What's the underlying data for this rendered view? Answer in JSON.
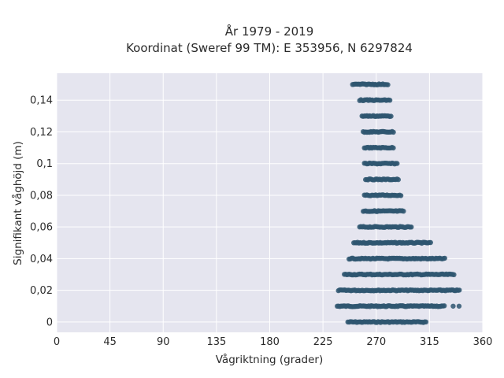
{
  "chart_data": {
    "type": "scatter",
    "title": "År 1979 - 2019",
    "subtitle": "Koordinat (Sweref 99 TM): E 353956, N 6297824",
    "xlabel": "Vågriktning (grader)",
    "ylabel": "Signifikant våghöjd (m)",
    "xlim": [
      0,
      360
    ],
    "ylim": [
      -0.0065,
      0.157
    ],
    "x_ticks": [
      0,
      45,
      90,
      135,
      180,
      225,
      270,
      315,
      360
    ],
    "x_tick_labels": [
      "0",
      "45",
      "90",
      "135",
      "180",
      "225",
      "270",
      "315",
      "360"
    ],
    "y_ticks": [
      0,
      0.02,
      0.04,
      0.06,
      0.08,
      0.1,
      0.12,
      0.14
    ],
    "y_tick_labels": [
      "0",
      "0,02",
      "0,04",
      "0,06",
      "0,08",
      "0,1",
      "0,12",
      "0,14"
    ],
    "grid": true,
    "marker_color": "#2f5670",
    "background_color": "#e5e5ef",
    "bands": [
      {
        "y": 0.0,
        "x_min": 246,
        "x_max": 313,
        "outliers": []
      },
      {
        "y": 0.01,
        "x_min": 237,
        "x_max": 328,
        "outliers": [
          335,
          340
        ]
      },
      {
        "y": 0.02,
        "x_min": 238,
        "x_max": 341,
        "outliers": []
      },
      {
        "y": 0.03,
        "x_min": 243,
        "x_max": 336,
        "outliers": []
      },
      {
        "y": 0.04,
        "x_min": 247,
        "x_max": 328,
        "outliers": []
      },
      {
        "y": 0.05,
        "x_min": 251,
        "x_max": 317,
        "outliers": []
      },
      {
        "y": 0.06,
        "x_min": 256,
        "x_max": 300,
        "outliers": []
      },
      {
        "y": 0.07,
        "x_min": 259,
        "x_max": 294,
        "outliers": []
      },
      {
        "y": 0.08,
        "x_min": 260,
        "x_max": 291,
        "outliers": []
      },
      {
        "y": 0.09,
        "x_min": 261,
        "x_max": 289,
        "outliers": []
      },
      {
        "y": 0.1,
        "x_min": 260,
        "x_max": 288,
        "outliers": []
      },
      {
        "y": 0.11,
        "x_min": 260,
        "x_max": 285,
        "outliers": []
      },
      {
        "y": 0.12,
        "x_min": 259,
        "x_max": 285,
        "outliers": []
      },
      {
        "y": 0.13,
        "x_min": 258,
        "x_max": 283,
        "outliers": []
      },
      {
        "y": 0.14,
        "x_min": 256,
        "x_max": 282,
        "outliers": []
      },
      {
        "y": 0.15,
        "x_min": 250,
        "x_max": 280,
        "outliers": []
      }
    ]
  }
}
